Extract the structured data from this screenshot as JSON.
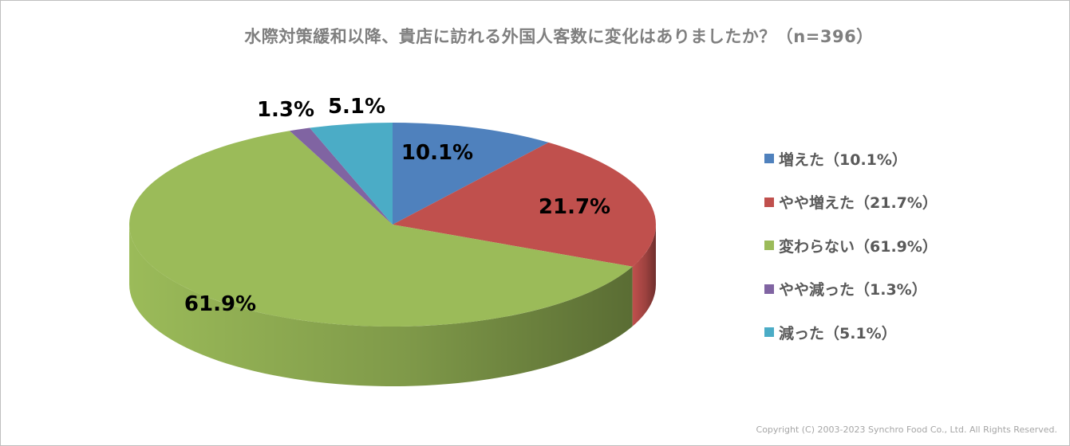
{
  "chart_data": {
    "type": "pie",
    "title": "水際対策緩和以降、貴店に訪れる外国人客数に変化はありましたか？（n=396）",
    "slices": [
      {
        "label": "増えた",
        "value": 10.1,
        "value_label": "10.1%",
        "legend": "増えた（10.1%）",
        "color": "#4f81bd",
        "side_color": "#2c4d75"
      },
      {
        "label": "やや増えた",
        "value": 21.7,
        "value_label": "21.7%",
        "legend": "やや増えた（21.7%）",
        "color": "#c0504d",
        "side_color": "#772c2a"
      },
      {
        "label": "変わらない",
        "value": 61.9,
        "value_label": "61.9%",
        "legend": "変わらない（61.9%）",
        "color": "#9bbb59",
        "side_color": "#5f7530"
      },
      {
        "label": "やや減った",
        "value": 1.3,
        "value_label": "1.3%",
        "legend": "やや減った（1.3%）",
        "color": "#8064a2",
        "side_color": "#4d3b62"
      },
      {
        "label": "減った",
        "value": 5.1,
        "value_label": "5.1%",
        "legend": "減った（5.1%）",
        "color": "#4bacc6",
        "side_color": "#276a7c"
      }
    ],
    "style": "3d",
    "legend_position": "right"
  },
  "copyright": "Copyright (C) 2003-2023   Synchro Food Co., Ltd. All Rights Reserved."
}
